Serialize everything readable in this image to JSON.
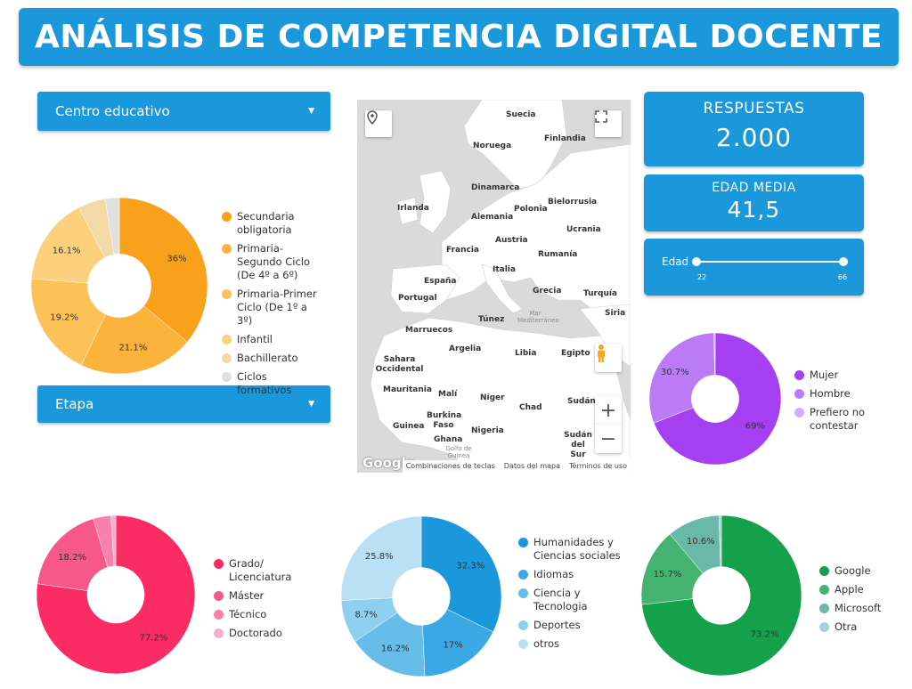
{
  "header": {
    "title": "ANÁLISIS DE COMPETENCIA DIGITAL DOCENTE"
  },
  "filters": {
    "centro": "Centro educativo",
    "etapa": "Etapa"
  },
  "kpis": {
    "respuestas_label": "RESPUESTAS",
    "respuestas_value": "2.000",
    "edad_label": "EDAD MEDIA",
    "edad_value": "41,5"
  },
  "slider": {
    "label": "Edad",
    "min": "22",
    "max": "66"
  },
  "map": {
    "countries": [
      "Suecia",
      "Finlandia",
      "Noruega",
      "Dinamarca",
      "Irlanda",
      "Alemania",
      "Polonia",
      "Bielorrusia",
      "Ucrania",
      "Francia",
      "Austria",
      "Rumanía",
      "Italia",
      "España",
      "Portugal",
      "Grecia",
      "Turquía",
      "Túnez",
      "Siria",
      "Marruecos",
      "Argelia",
      "Libia",
      "Egipto",
      "Sahara Occidental",
      "Mauritania",
      "Malí",
      "Níger",
      "Chad",
      "Sudán",
      "Burkina Faso",
      "Guinea",
      "Ghana",
      "Nigeria",
      "Sudán del Sur"
    ],
    "seas": [
      "Mar Mediterráneo",
      "Golfo de Guinea"
    ],
    "google": "Google",
    "attribution": [
      "Combinaciones de teclas",
      "Datos del mapa",
      "Términos de uso"
    ],
    "zoom_in": "+",
    "zoom_out": "−"
  },
  "colors": {
    "primary": "#1a98db",
    "land": "#ffffff",
    "water": "#dadada"
  },
  "chart_data": [
    {
      "type": "pie",
      "id": "centro",
      "labels": [
        "Secundaria obligatoria",
        "Primaria-Segundo Ciclo (De 4º a 6º)",
        "Primaria-Primer Ciclo (De 1º a 3º)",
        "Infantil",
        "Bachillerato",
        "Ciclos formativos"
      ],
      "values": [
        36,
        21.1,
        19.2,
        16.1,
        5,
        2.6
      ],
      "display": [
        "36%",
        "21.1%",
        "19.2%",
        "16.1%",
        "",
        ""
      ],
      "colors": [
        "#f9a11b",
        "#fbb33b",
        "#fcc257",
        "#fdd07d",
        "#f3d9a6",
        "#e0e0e0"
      ]
    },
    {
      "type": "pie",
      "id": "genero",
      "labels": [
        "Mujer",
        "Hombre",
        "Prefiero no contestar"
      ],
      "values": [
        69,
        30.7,
        0.3
      ],
      "display": [
        "69%",
        "30.7%",
        ""
      ],
      "colors": [
        "#a43ff2",
        "#bc7bf6",
        "#d3aef8"
      ]
    },
    {
      "type": "pie",
      "id": "titulacion",
      "labels": [
        "Grado/ Licenciatura",
        "Máster",
        "Técnico",
        "Doctorado"
      ],
      "values": [
        77.2,
        18.2,
        3.6,
        1
      ],
      "display": [
        "77.2%",
        "18.2%",
        "",
        ""
      ],
      "colors": [
        "#fb2b63",
        "#f8578a",
        "#f980ab",
        "#f4b1cc"
      ]
    },
    {
      "type": "pie",
      "id": "area",
      "labels": [
        "Humanidades y Ciencias sociales",
        "Idiomas",
        "Ciencia y Tecnologia",
        "Deportes",
        "otros"
      ],
      "values": [
        32.3,
        17,
        16.2,
        8.7,
        25.8
      ],
      "display": [
        "32.3%",
        "17%",
        "16.2%",
        "8.7%",
        "25.8%"
      ],
      "colors": [
        "#1a98db",
        "#3aa9e3",
        "#66bde9",
        "#8fcff0",
        "#b9e0f5"
      ]
    },
    {
      "type": "pie",
      "id": "so",
      "labels": [
        "Google",
        "Apple",
        "Microsoft",
        "Otra"
      ],
      "values": [
        73.2,
        15.7,
        10.6,
        0.5
      ],
      "display": [
        "73.2%",
        "15.7%",
        "10.6%",
        ""
      ],
      "colors": [
        "#15a04b",
        "#43b36f",
        "#6ab8a7",
        "#a6d2de"
      ]
    }
  ]
}
